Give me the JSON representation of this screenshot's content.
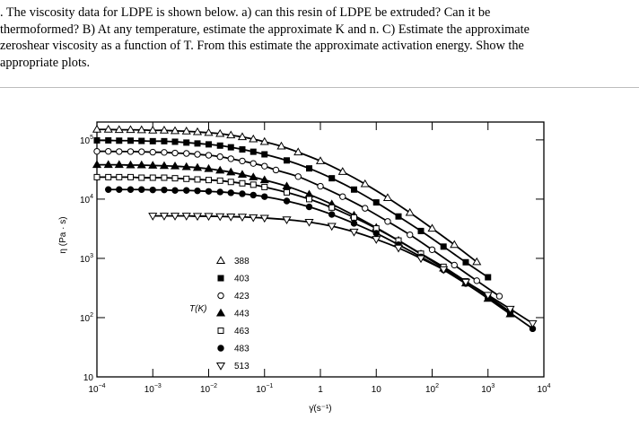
{
  "question_text": ". The viscosity data for LDPE is shown below.  a) can this resin of LDPE be extruded? Can it be\nthermoformed?  B) At any temperature, estimate the approximate K and n.  C) Estimate the approximate\nzeroshear viscosity as a function of T.  From this estimate the approximate activation energy.  Show the\nappropriate plots.",
  "chart_data": {
    "type": "line",
    "xlabel": "γ̇(s⁻¹)",
    "ylabel": "η (Pa · s)",
    "x_scale": "log",
    "y_scale": "log",
    "xlim": [
      0.0001,
      10000
    ],
    "ylim": [
      10,
      200000
    ],
    "x_ticks": [
      {
        "value": 0.0001,
        "base": "10",
        "exp": "−4"
      },
      {
        "value": 0.001,
        "base": "10",
        "exp": "−3"
      },
      {
        "value": 0.01,
        "base": "10",
        "exp": "−2"
      },
      {
        "value": 0.1,
        "base": "10",
        "exp": "−1"
      },
      {
        "value": 1,
        "base": "1",
        "exp": ""
      },
      {
        "value": 10,
        "base": "10",
        "exp": ""
      },
      {
        "value": 100,
        "base": "10",
        "exp": "2"
      },
      {
        "value": 1000,
        "base": "10",
        "exp": "3"
      },
      {
        "value": 10000,
        "base": "10",
        "exp": "4"
      }
    ],
    "y_ticks": [
      {
        "value": 10,
        "base": "10",
        "exp": ""
      },
      {
        "value": 100,
        "base": "10",
        "exp": "2"
      },
      {
        "value": 1000,
        "base": "10",
        "exp": "3"
      },
      {
        "value": 10000,
        "base": "10",
        "exp": "4"
      },
      {
        "value": 100000,
        "base": "10",
        "exp": "5"
      }
    ],
    "legend_title": "T(K)",
    "legend_position": "center",
    "series": [
      {
        "name": "388",
        "marker": "triangle-up-open",
        "x": [
          0.0001,
          0.00016,
          0.00025,
          0.0004,
          0.00063,
          0.001,
          0.0016,
          0.0025,
          0.004,
          0.0063,
          0.01,
          0.016,
          0.025,
          0.04,
          0.063,
          0.1,
          0.2,
          0.4,
          1,
          2.5,
          6.3,
          16,
          40,
          100,
          250,
          630
        ],
        "y": [
          150000,
          150000,
          148000,
          148000,
          147000,
          145000,
          145000,
          142000,
          140000,
          136000,
          132000,
          127000,
          120000,
          112000,
          103000,
          93000,
          78000,
          62000,
          44000,
          29000,
          18000,
          10500,
          5900,
          3200,
          1700,
          870
        ]
      },
      {
        "name": "403",
        "marker": "square-filled",
        "x": [
          0.0001,
          0.00016,
          0.00025,
          0.0004,
          0.00063,
          0.001,
          0.0016,
          0.0025,
          0.004,
          0.0063,
          0.01,
          0.016,
          0.025,
          0.04,
          0.063,
          0.1,
          0.25,
          0.63,
          1.6,
          4,
          10,
          25,
          63,
          160,
          400,
          1000
        ],
        "y": [
          98000,
          98000,
          97000,
          97000,
          96000,
          95000,
          95000,
          93000,
          90000,
          87000,
          84000,
          80000,
          75000,
          69000,
          63000,
          57000,
          45000,
          33000,
          22500,
          14500,
          8800,
          5100,
          2900,
          1580,
          860,
          480
        ]
      },
      {
        "name": "423",
        "marker": "circle-open",
        "x": [
          0.0001,
          0.00016,
          0.00025,
          0.0004,
          0.00063,
          0.001,
          0.0016,
          0.0025,
          0.004,
          0.0063,
          0.01,
          0.016,
          0.025,
          0.04,
          0.063,
          0.1,
          0.16,
          0.4,
          1,
          2.5,
          6.3,
          16,
          40,
          100,
          250,
          630,
          1600
        ],
        "y": [
          64000,
          64000,
          63500,
          63500,
          63000,
          62000,
          61500,
          60000,
          59000,
          57000,
          55000,
          52000,
          48000,
          44000,
          40000,
          36000,
          31000,
          24000,
          16500,
          11000,
          7000,
          4200,
          2500,
          1400,
          770,
          420,
          230
        ]
      },
      {
        "name": "443",
        "marker": "triangle-up-filled",
        "x": [
          0.0001,
          0.00016,
          0.00025,
          0.0004,
          0.00063,
          0.001,
          0.0016,
          0.0025,
          0.004,
          0.0063,
          0.01,
          0.016,
          0.025,
          0.04,
          0.063,
          0.1,
          0.25,
          0.63,
          1.6,
          4,
          10,
          25,
          63,
          160,
          400,
          1000,
          2500
        ],
        "y": [
          38000,
          38000,
          38000,
          37500,
          37500,
          37000,
          36500,
          36000,
          35000,
          34000,
          32500,
          30500,
          28500,
          26000,
          23500,
          21000,
          16500,
          12000,
          8200,
          5300,
          3300,
          2000,
          1180,
          680,
          380,
          210,
          115
        ]
      },
      {
        "name": "463",
        "marker": "square-open",
        "x": [
          0.0001,
          0.00016,
          0.00025,
          0.0004,
          0.00063,
          0.001,
          0.0016,
          0.0025,
          0.004,
          0.0063,
          0.01,
          0.016,
          0.025,
          0.04,
          0.063,
          0.1,
          0.25,
          0.63,
          1.6,
          4,
          10,
          25,
          63,
          160,
          400,
          1000,
          2500
        ],
        "y": [
          23500,
          23500,
          23500,
          23500,
          23000,
          23000,
          23000,
          22500,
          22000,
          21500,
          21000,
          20500,
          19500,
          18500,
          17500,
          16000,
          13000,
          10000,
          7200,
          4900,
          3200,
          2000,
          1200,
          720,
          410,
          230,
          125
        ]
      },
      {
        "name": "483",
        "marker": "circle-filled",
        "x": [
          0.00016,
          0.00025,
          0.0004,
          0.00063,
          0.001,
          0.0016,
          0.0025,
          0.004,
          0.0063,
          0.01,
          0.016,
          0.025,
          0.04,
          0.063,
          0.1,
          0.25,
          0.63,
          1.6,
          4,
          10,
          25,
          63,
          160,
          400,
          1000,
          2500,
          6300
        ],
        "y": [
          14500,
          14500,
          14500,
          14500,
          14300,
          14300,
          14000,
          14000,
          13800,
          13500,
          13200,
          12800,
          12300,
          11700,
          11000,
          9300,
          7400,
          5500,
          3900,
          2650,
          1700,
          1060,
          640,
          375,
          215,
          120,
          65
        ]
      },
      {
        "name": "513",
        "marker": "triangle-down-open",
        "x": [
          0.001,
          0.0016,
          0.0025,
          0.004,
          0.0063,
          0.01,
          0.016,
          0.025,
          0.04,
          0.063,
          0.1,
          0.25,
          0.63,
          1.6,
          4,
          10,
          25,
          63,
          160,
          400,
          1000,
          2500,
          6300
        ],
        "y": [
          5200,
          5200,
          5200,
          5200,
          5150,
          5150,
          5100,
          5050,
          5000,
          4900,
          4800,
          4500,
          4100,
          3500,
          2800,
          2100,
          1500,
          1000,
          650,
          400,
          240,
          140,
          80
        ]
      }
    ]
  }
}
